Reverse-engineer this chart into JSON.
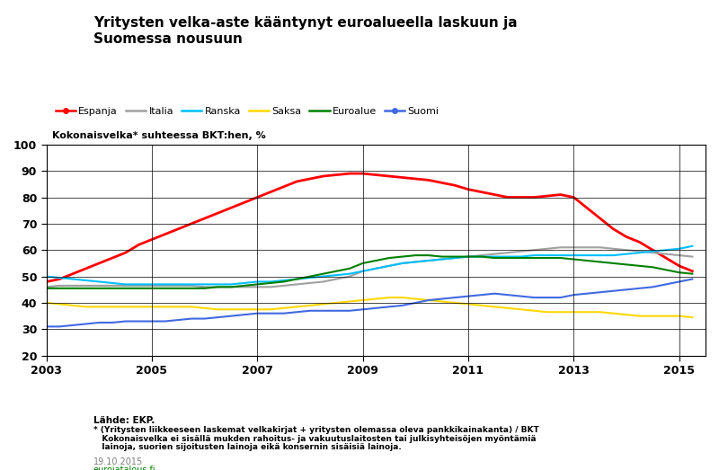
{
  "title": "Yritysten velka-aste kääntynyt euroalueella laskuun ja\nSuomessa nousuun",
  "ylabel": "Kokonaisvelka* suhteessa BKT:hen, %",
  "source_text": "Lähde: EKP.",
  "footnote": "* (Yritysten liikkeeseen laskemat velkakirjat + yritysten olemassa oleva pankkikainakanta) / BKT\n   Kokonaisvelka ei sisällä mukden rahoitus- ja vakuutuslaitosten tai julkisyhteisöjen myöntämiä\n   lainoja, suorien sijoitusten lainoja eikä konsernin sisäisiä lainoja.",
  "date_text": "19.10.2015",
  "website_text": "eurojatalous.fi",
  "xlim_start": 2003.0,
  "xlim_end": 2015.5,
  "ylim_bottom": 20,
  "ylim_top": 100,
  "yticks": [
    20,
    30,
    40,
    50,
    60,
    70,
    80,
    90,
    100
  ],
  "xticks": [
    2003,
    2005,
    2007,
    2009,
    2011,
    2013,
    2015
  ],
  "series": [
    {
      "label": "Espanja",
      "color": "#FF0000",
      "linewidth": 2.0,
      "data_x": [
        2003.0,
        2003.25,
        2003.5,
        2003.75,
        2004.0,
        2004.25,
        2004.5,
        2004.75,
        2005.0,
        2005.25,
        2005.5,
        2005.75,
        2006.0,
        2006.25,
        2006.5,
        2006.75,
        2007.0,
        2007.25,
        2007.5,
        2007.75,
        2008.0,
        2008.25,
        2008.5,
        2008.75,
        2009.0,
        2009.25,
        2009.5,
        2009.75,
        2010.0,
        2010.25,
        2010.5,
        2010.75,
        2011.0,
        2011.25,
        2011.5,
        2011.75,
        2012.0,
        2012.25,
        2012.5,
        2012.75,
        2013.0,
        2013.25,
        2013.5,
        2013.75,
        2014.0,
        2014.25,
        2014.5,
        2014.75,
        2015.0,
        2015.25
      ],
      "data_y": [
        48,
        49,
        51,
        53,
        55,
        57,
        59,
        62,
        64,
        66,
        68,
        70,
        72,
        74,
        76,
        78,
        80,
        82,
        84,
        86,
        87,
        88,
        88.5,
        89,
        89,
        88.5,
        88,
        87.5,
        87,
        86.5,
        85.5,
        84.5,
        83,
        82,
        81,
        80,
        80,
        80,
        80.5,
        81,
        80,
        76,
        72,
        68,
        65,
        63,
        60,
        57,
        54,
        52
      ]
    },
    {
      "label": "Italia",
      "color": "#A0A0A0",
      "linewidth": 1.5,
      "data_x": [
        2003.0,
        2003.25,
        2003.5,
        2003.75,
        2004.0,
        2004.25,
        2004.5,
        2004.75,
        2005.0,
        2005.25,
        2005.5,
        2005.75,
        2006.0,
        2006.25,
        2006.5,
        2006.75,
        2007.0,
        2007.25,
        2007.5,
        2007.75,
        2008.0,
        2008.25,
        2008.5,
        2008.75,
        2009.0,
        2009.25,
        2009.5,
        2009.75,
        2010.0,
        2010.25,
        2010.5,
        2010.75,
        2011.0,
        2011.25,
        2011.5,
        2011.75,
        2012.0,
        2012.25,
        2012.5,
        2012.75,
        2013.0,
        2013.25,
        2013.5,
        2013.75,
        2014.0,
        2014.25,
        2014.5,
        2014.75,
        2015.0,
        2015.25
      ],
      "data_y": [
        46,
        46.5,
        46.5,
        46.5,
        46.5,
        46.5,
        46.5,
        46.5,
        46.5,
        46.5,
        46.5,
        46.5,
        46,
        46,
        46,
        46,
        46,
        46,
        46.5,
        47,
        47.5,
        48,
        49,
        50,
        52,
        53,
        54,
        55,
        55.5,
        56,
        56.5,
        57,
        57.5,
        58,
        58.5,
        59,
        59.5,
        60,
        60.5,
        61,
        61,
        61,
        61,
        60.5,
        60,
        59.5,
        59,
        58.5,
        58,
        57.5
      ]
    },
    {
      "label": "Ranska",
      "color": "#00BFFF",
      "linewidth": 1.5,
      "data_x": [
        2003.0,
        2003.25,
        2003.5,
        2003.75,
        2004.0,
        2004.25,
        2004.5,
        2004.75,
        2005.0,
        2005.25,
        2005.5,
        2005.75,
        2006.0,
        2006.25,
        2006.5,
        2006.75,
        2007.0,
        2007.25,
        2007.5,
        2007.75,
        2008.0,
        2008.25,
        2008.5,
        2008.75,
        2009.0,
        2009.25,
        2009.5,
        2009.75,
        2010.0,
        2010.25,
        2010.5,
        2010.75,
        2011.0,
        2011.25,
        2011.5,
        2011.75,
        2012.0,
        2012.25,
        2012.5,
        2012.75,
        2013.0,
        2013.25,
        2013.5,
        2013.75,
        2014.0,
        2014.25,
        2014.5,
        2014.75,
        2015.0,
        2015.25
      ],
      "data_y": [
        50,
        49.5,
        49,
        48.5,
        48,
        47.5,
        47,
        47,
        47,
        47,
        47,
        47,
        47,
        47,
        47,
        47.5,
        48,
        48,
        48.5,
        49,
        49.5,
        50,
        50.5,
        51,
        52,
        53,
        54,
        55,
        55.5,
        56,
        56.5,
        57,
        57.5,
        57.5,
        57.5,
        57.5,
        57.5,
        58,
        58,
        58,
        58,
        58,
        58,
        58,
        58.5,
        59,
        59.5,
        60,
        60.5,
        61.5
      ]
    },
    {
      "label": "Saksa",
      "color": "#FFD700",
      "linewidth": 1.5,
      "data_x": [
        2003.0,
        2003.25,
        2003.5,
        2003.75,
        2004.0,
        2004.25,
        2004.5,
        2004.75,
        2005.0,
        2005.25,
        2005.5,
        2005.75,
        2006.0,
        2006.25,
        2006.5,
        2006.75,
        2007.0,
        2007.25,
        2007.5,
        2007.75,
        2008.0,
        2008.25,
        2008.5,
        2008.75,
        2009.0,
        2009.25,
        2009.5,
        2009.75,
        2010.0,
        2010.25,
        2010.5,
        2010.75,
        2011.0,
        2011.25,
        2011.5,
        2011.75,
        2012.0,
        2012.25,
        2012.5,
        2012.75,
        2013.0,
        2013.25,
        2013.5,
        2013.75,
        2014.0,
        2014.25,
        2014.5,
        2014.75,
        2015.0,
        2015.25
      ],
      "data_y": [
        40,
        39.5,
        39,
        38.5,
        38.5,
        38.5,
        38.5,
        38.5,
        38.5,
        38.5,
        38.5,
        38.5,
        38,
        37.5,
        37.5,
        37.5,
        37.5,
        37.5,
        38,
        38.5,
        39,
        39.5,
        40,
        40.5,
        41,
        41.5,
        42,
        42,
        41.5,
        41,
        40.5,
        40,
        39.5,
        39,
        38.5,
        38,
        37.5,
        37,
        36.5,
        36.5,
        36.5,
        36.5,
        36.5,
        36,
        35.5,
        35,
        35,
        35,
        35,
        34.5
      ]
    },
    {
      "label": "Euroalue",
      "color": "#008000",
      "linewidth": 1.5,
      "data_x": [
        2003.0,
        2003.25,
        2003.5,
        2003.75,
        2004.0,
        2004.25,
        2004.5,
        2004.75,
        2005.0,
        2005.25,
        2005.5,
        2005.75,
        2006.0,
        2006.25,
        2006.5,
        2006.75,
        2007.0,
        2007.25,
        2007.5,
        2007.75,
        2008.0,
        2008.25,
        2008.5,
        2008.75,
        2009.0,
        2009.25,
        2009.5,
        2009.75,
        2010.0,
        2010.25,
        2010.5,
        2010.75,
        2011.0,
        2011.25,
        2011.5,
        2011.75,
        2012.0,
        2012.25,
        2012.5,
        2012.75,
        2013.0,
        2013.25,
        2013.5,
        2013.75,
        2014.0,
        2014.25,
        2014.5,
        2014.75,
        2015.0,
        2015.25
      ],
      "data_y": [
        45.5,
        45.5,
        45.5,
        45.5,
        45.5,
        45.5,
        45.5,
        45.5,
        45.5,
        45.5,
        45.5,
        45.5,
        45.5,
        46,
        46,
        46.5,
        47,
        47.5,
        48,
        49,
        50,
        51,
        52,
        53,
        55,
        56,
        57,
        57.5,
        58,
        58,
        57.5,
        57.5,
        57.5,
        57.5,
        57,
        57,
        57,
        57,
        57,
        57,
        56.5,
        56,
        55.5,
        55,
        54.5,
        54,
        53.5,
        52.5,
        51.5,
        51
      ]
    },
    {
      "label": "Suomi",
      "color": "#4169E1",
      "linewidth": 1.5,
      "data_x": [
        2003.0,
        2003.25,
        2003.5,
        2003.75,
        2004.0,
        2004.25,
        2004.5,
        2004.75,
        2005.0,
        2005.25,
        2005.5,
        2005.75,
        2006.0,
        2006.25,
        2006.5,
        2006.75,
        2007.0,
        2007.25,
        2007.5,
        2007.75,
        2008.0,
        2008.25,
        2008.5,
        2008.75,
        2009.0,
        2009.25,
        2009.5,
        2009.75,
        2010.0,
        2010.25,
        2010.5,
        2010.75,
        2011.0,
        2011.25,
        2011.5,
        2011.75,
        2012.0,
        2012.25,
        2012.5,
        2012.75,
        2013.0,
        2013.25,
        2013.5,
        2013.75,
        2014.0,
        2014.25,
        2014.5,
        2014.75,
        2015.0,
        2015.25
      ],
      "data_y": [
        31,
        31,
        31.5,
        32,
        32.5,
        32.5,
        33,
        33,
        33,
        33,
        33.5,
        34,
        34,
        34.5,
        35,
        35.5,
        36,
        36,
        36,
        36.5,
        37,
        37,
        37,
        37,
        37.5,
        38,
        38.5,
        39,
        40,
        41,
        41.5,
        42,
        42.5,
        43,
        43.5,
        43,
        42.5,
        42,
        42,
        42,
        43,
        43.5,
        44,
        44.5,
        45,
        45.5,
        46,
        47,
        48,
        49
      ]
    }
  ],
  "legend_order": [
    "Espanja",
    "Italia",
    "Ranska",
    "Saksa",
    "Euroalue",
    "Suomi"
  ],
  "legend_colors": [
    "#FF0000",
    "#A0A0A0",
    "#00BFFF",
    "#FFD700",
    "#008000",
    "#4169E1"
  ],
  "background_color": "#FFFFFF",
  "grid_color": "#000000",
  "text_color_date": "#808080",
  "text_color_web": "#008000"
}
